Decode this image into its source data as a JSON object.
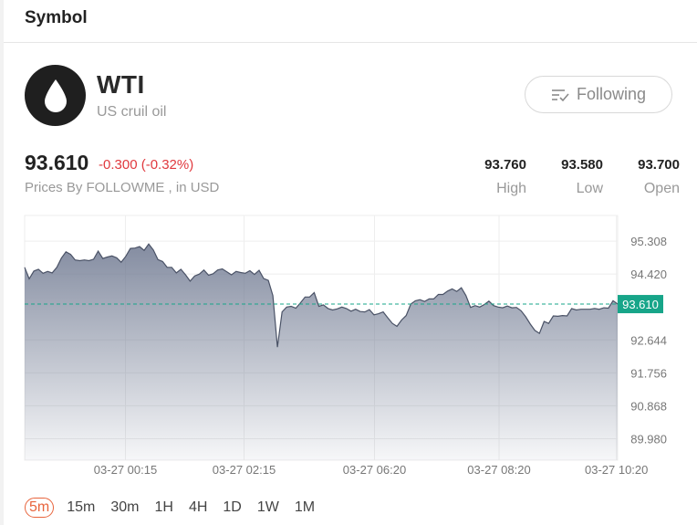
{
  "header": {
    "title": "Symbol"
  },
  "symbol": {
    "name": "WTI",
    "description": "US cruil oil",
    "follow_label": "Following"
  },
  "quote": {
    "price": "93.610",
    "change": "-0.300 (-0.32%)",
    "source": "Prices By FOLLOWME , in USD",
    "stats": [
      {
        "value": "93.760",
        "label": "High"
      },
      {
        "value": "93.580",
        "label": "Low"
      },
      {
        "value": "93.700",
        "label": "Open"
      }
    ]
  },
  "intervals": [
    "5m",
    "15m",
    "30m",
    "1H",
    "4H",
    "1D",
    "1W",
    "1M"
  ],
  "active_interval": "5m",
  "colors": {
    "down": "#e0393e",
    "accent": "#e8643c",
    "current_line": "#17a589",
    "series_line": "#4a5266"
  },
  "chart_data": {
    "type": "area",
    "y_ticks": [
      "95.308",
      "94.420",
      "92.644",
      "91.756",
      "90.868",
      "89.980"
    ],
    "x_ticks": [
      "03-27 00:15",
      "03-27 02:15",
      "03-27 06:20",
      "03-27 08:20",
      "03-27 10:20"
    ],
    "ylim": [
      89.4,
      96.0
    ],
    "current_value": 93.61,
    "current_label": "93.610",
    "grid": true,
    "x": [
      0,
      1,
      2,
      3,
      4,
      5,
      6,
      7,
      8,
      9,
      10,
      11,
      12,
      13,
      14,
      15,
      16,
      17,
      18,
      19,
      20,
      21,
      22,
      23,
      24,
      25,
      26,
      27,
      28,
      29,
      30,
      31,
      32,
      33,
      34,
      35,
      36,
      37,
      38,
      39,
      40,
      41,
      42,
      43,
      44,
      45,
      46,
      47,
      48,
      49,
      50,
      51,
      52,
      53,
      54,
      55,
      56,
      57,
      58,
      59,
      60,
      61,
      62,
      63,
      64,
      65,
      66,
      67,
      68,
      69,
      70,
      71,
      72,
      73,
      74,
      75,
      76,
      77,
      78,
      79,
      80,
      81,
      82,
      83,
      84,
      85,
      86,
      87,
      88,
      89,
      90,
      91,
      92,
      93,
      94,
      95,
      96,
      97,
      98,
      99,
      100,
      101,
      102,
      103,
      104,
      105,
      106,
      107,
      108,
      109,
      110,
      111,
      112,
      113,
      114,
      115,
      116,
      117,
      118,
      119,
      120,
      121,
      122,
      123,
      124,
      125,
      126,
      127,
      128,
      129
    ],
    "values": [
      94.6,
      94.29,
      94.5,
      94.55,
      94.44,
      94.49,
      94.45,
      94.6,
      94.85,
      95.02,
      94.95,
      94.8,
      94.78,
      94.8,
      94.78,
      94.82,
      95.04,
      94.84,
      94.88,
      94.91,
      94.86,
      94.74,
      94.9,
      95.11,
      95.12,
      95.16,
      95.06,
      95.23,
      95.07,
      94.81,
      94.76,
      94.6,
      94.6,
      94.45,
      94.55,
      94.4,
      94.23,
      94.37,
      94.42,
      94.53,
      94.39,
      94.43,
      94.53,
      94.56,
      94.48,
      94.4,
      94.49,
      94.46,
      94.44,
      94.51,
      94.41,
      94.52,
      94.3,
      94.25,
      93.84,
      92.45,
      93.4,
      93.53,
      93.55,
      93.5,
      93.64,
      93.8,
      93.8,
      93.92,
      93.55,
      93.59,
      93.49,
      93.45,
      93.48,
      93.53,
      93.49,
      93.42,
      93.47,
      93.41,
      93.4,
      93.46,
      93.32,
      93.35,
      93.4,
      93.24,
      93.09,
      93.01,
      93.18,
      93.3,
      93.61,
      93.7,
      93.73,
      93.68,
      93.75,
      93.75,
      93.87,
      93.87,
      93.96,
      94.02,
      93.95,
      94.05,
      93.84,
      93.52,
      93.57,
      93.53,
      93.6,
      93.69,
      93.57,
      93.53,
      93.51,
      93.56,
      93.51,
      93.52,
      93.43,
      93.27,
      93.07,
      92.9,
      92.82,
      93.14,
      93.09,
      93.29,
      93.28,
      93.3,
      93.29,
      93.49,
      93.45,
      93.47,
      93.47,
      93.47,
      93.49,
      93.47,
      93.51,
      93.5,
      93.7,
      93.61
    ]
  }
}
